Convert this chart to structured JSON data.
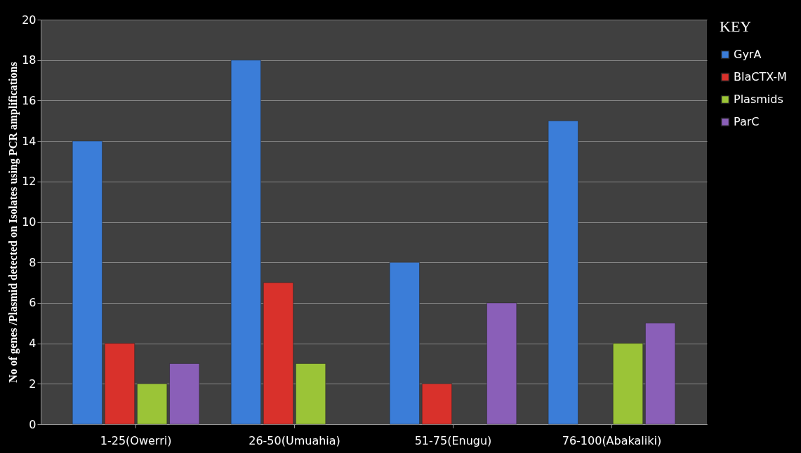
{
  "chart_data": {
    "type": "bar",
    "ylabel": "No of genes /Plasmid detected on Isolates using PCR amplifications",
    "legend_title": "KEY",
    "categories": [
      "1-25(Owerri)",
      "26-50(Umuahia)",
      "51-75(Enugu)",
      "76-100(Abakaliki)"
    ],
    "series": [
      {
        "name": "GyrA",
        "color": "#3b7dd8",
        "values": [
          14,
          18,
          8,
          15
        ]
      },
      {
        "name": "BlaCTX-M",
        "color": "#d9312b",
        "values": [
          4,
          7,
          2,
          null
        ]
      },
      {
        "name": "Plasmids",
        "color": "#9bc437",
        "values": [
          2,
          3,
          null,
          4
        ]
      },
      {
        "name": "ParC",
        "color": "#8a5fb8",
        "values": [
          3,
          null,
          6,
          5
        ]
      }
    ],
    "ylim": [
      0,
      20
    ],
    "yticks": [
      0,
      2,
      4,
      6,
      8,
      10,
      12,
      14,
      16,
      18,
      20
    ],
    "grid": "y",
    "legend": "right"
  }
}
